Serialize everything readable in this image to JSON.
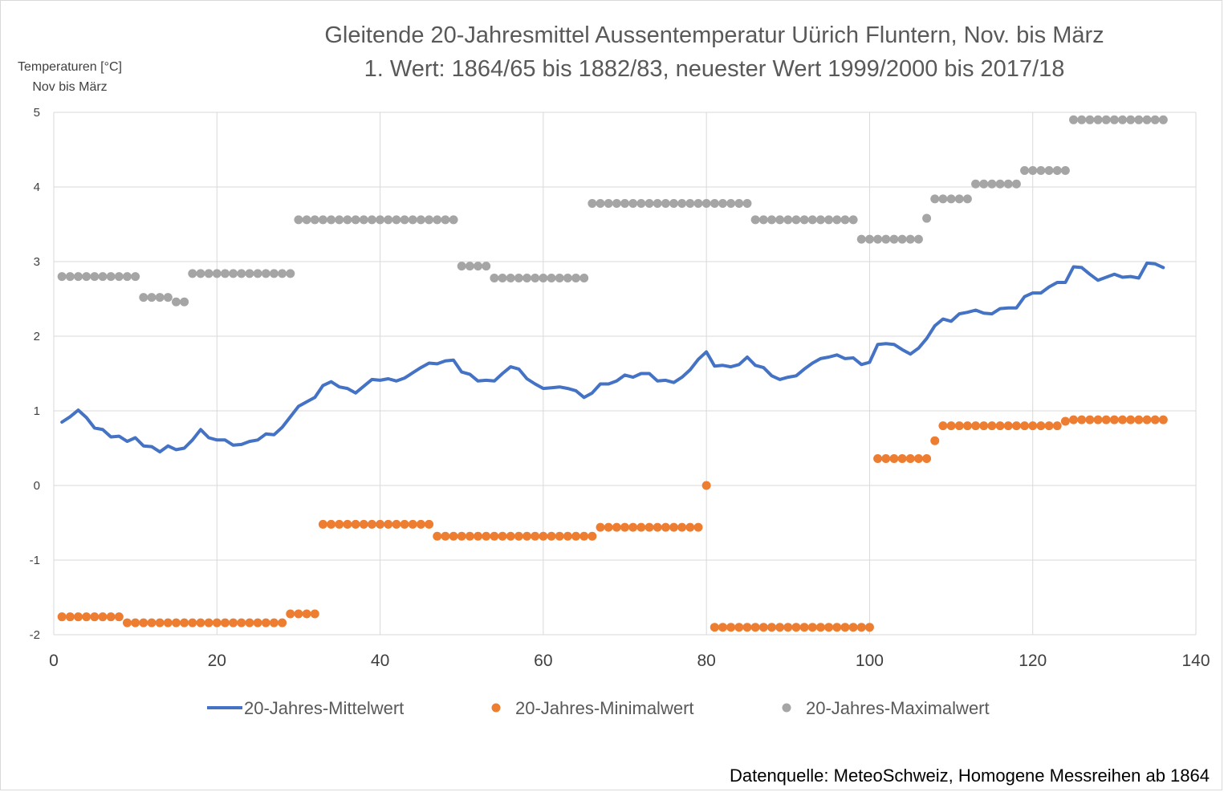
{
  "chart_data": {
    "type": "line",
    "title": "Gleitende 20-Jahresmittel Aussentemperatur Uürich Fluntern, Nov. bis März",
    "subtitle": "1. Wert: 1864/65 bis 1882/83, neuester Wert 1999/2000 bis 2017/18",
    "ylabel_line1": "Temperaturen [°C]",
    "ylabel_line2": "Nov bis März",
    "xlim": [
      0,
      140
    ],
    "ylim": [
      -2,
      5
    ],
    "xticks": [
      "0",
      "20",
      "40",
      "60",
      "80",
      "100",
      "120",
      "140"
    ],
    "yticks": [
      "-2",
      "-1",
      "0",
      "1",
      "2",
      "3",
      "4",
      "5"
    ],
    "grid": true,
    "legend_position": "bottom",
    "source": "Datenquelle: MeteoSchweiz, Homogene Messreihen ab 1864",
    "series": [
      {
        "name": "20-Jahres-Mittelwert",
        "style": "line",
        "color": "#4472c4",
        "x": [
          1,
          2,
          3,
          4,
          5,
          6,
          7,
          8,
          9,
          10,
          11,
          12,
          13,
          14,
          15,
          16,
          17,
          18,
          19,
          20,
          21,
          22,
          23,
          24,
          25,
          26,
          27,
          28,
          29,
          30,
          31,
          32,
          33,
          34,
          35,
          36,
          37,
          38,
          39,
          40,
          41,
          42,
          43,
          44,
          45,
          46,
          47,
          48,
          49,
          50,
          51,
          52,
          53,
          54,
          55,
          56,
          57,
          58,
          59,
          60,
          61,
          62,
          63,
          64,
          65,
          66,
          67,
          68,
          69,
          70,
          71,
          72,
          73,
          74,
          75,
          76,
          77,
          78,
          79,
          80,
          81,
          82,
          83,
          84,
          85,
          86,
          87,
          88,
          89,
          90,
          91,
          92,
          93,
          94,
          95,
          96,
          97,
          98,
          99,
          100,
          101,
          102,
          103,
          104,
          105,
          106,
          107,
          108,
          109,
          110,
          111,
          112,
          113,
          114,
          115,
          116,
          117,
          118,
          119,
          120,
          121,
          122,
          123,
          124,
          125,
          126,
          127,
          128,
          129,
          130,
          131,
          132,
          133,
          134,
          135,
          136
        ],
        "y": [
          0.85,
          0.92,
          1.01,
          0.91,
          0.77,
          0.75,
          0.65,
          0.66,
          0.59,
          0.64,
          0.53,
          0.52,
          0.45,
          0.53,
          0.48,
          0.5,
          0.61,
          0.75,
          0.64,
          0.61,
          0.61,
          0.54,
          0.55,
          0.59,
          0.61,
          0.69,
          0.68,
          0.78,
          0.92,
          1.06,
          1.12,
          1.18,
          1.34,
          1.39,
          1.32,
          1.3,
          1.24,
          1.33,
          1.42,
          1.41,
          1.43,
          1.4,
          1.44,
          1.51,
          1.58,
          1.64,
          1.63,
          1.67,
          1.68,
          1.52,
          1.49,
          1.4,
          1.41,
          1.4,
          1.5,
          1.59,
          1.56,
          1.43,
          1.36,
          1.3,
          1.31,
          1.32,
          1.3,
          1.27,
          1.18,
          1.24,
          1.36,
          1.36,
          1.4,
          1.48,
          1.45,
          1.5,
          1.5,
          1.4,
          1.41,
          1.38,
          1.45,
          1.55,
          1.69,
          1.79,
          1.6,
          1.61,
          1.59,
          1.62,
          1.72,
          1.61,
          1.58,
          1.47,
          1.42,
          1.45,
          1.47,
          1.56,
          1.64,
          1.7,
          1.72,
          1.75,
          1.7,
          1.71,
          1.62,
          1.65,
          1.89,
          1.9,
          1.89,
          1.82,
          1.76,
          1.84,
          1.97,
          2.14,
          2.23,
          2.2,
          2.3,
          2.32,
          2.35,
          2.31,
          2.3,
          2.37,
          2.38,
          2.38,
          2.53,
          2.58,
          2.58,
          2.66,
          2.72,
          2.72,
          2.93,
          2.92,
          2.83,
          2.75,
          2.79,
          2.83,
          2.79,
          2.8,
          2.78,
          2.98,
          2.97,
          2.92
        ]
      },
      {
        "name": "20-Jahres-Minimalwert",
        "style": "dots",
        "color": "#ed7d31",
        "x": [
          1,
          2,
          3,
          4,
          5,
          6,
          7,
          8,
          9,
          10,
          11,
          12,
          13,
          14,
          15,
          16,
          17,
          18,
          19,
          20,
          21,
          22,
          23,
          24,
          25,
          26,
          27,
          28,
          29,
          30,
          31,
          32,
          33,
          34,
          35,
          36,
          37,
          38,
          39,
          40,
          41,
          42,
          43,
          44,
          45,
          46,
          47,
          48,
          49,
          50,
          51,
          52,
          53,
          54,
          55,
          56,
          57,
          58,
          59,
          60,
          61,
          62,
          63,
          64,
          65,
          66,
          67,
          68,
          69,
          70,
          71,
          72,
          73,
          74,
          75,
          76,
          77,
          78,
          79,
          80,
          81,
          82,
          83,
          84,
          85,
          86,
          87,
          88,
          89,
          90,
          91,
          92,
          93,
          94,
          95,
          96,
          97,
          98,
          99,
          100,
          101,
          102,
          103,
          104,
          105,
          106,
          107,
          108,
          109,
          110,
          111,
          112,
          113,
          114,
          115,
          116,
          117,
          118,
          119,
          120,
          121,
          122,
          123,
          124,
          125,
          126,
          127,
          128,
          129,
          130,
          131,
          132,
          133,
          134,
          135,
          136
        ],
        "y": [
          -1.76,
          -1.76,
          -1.76,
          -1.76,
          -1.76,
          -1.76,
          -1.76,
          -1.76,
          -1.84,
          -1.84,
          -1.84,
          -1.84,
          -1.84,
          -1.84,
          -1.84,
          -1.84,
          -1.84,
          -1.84,
          -1.84,
          -1.84,
          -1.84,
          -1.84,
          -1.84,
          -1.84,
          -1.84,
          -1.84,
          -1.84,
          -1.84,
          -1.72,
          -1.72,
          -1.72,
          -1.72,
          -0.52,
          -0.52,
          -0.52,
          -0.52,
          -0.52,
          -0.52,
          -0.52,
          -0.52,
          -0.52,
          -0.52,
          -0.52,
          -0.52,
          -0.52,
          -0.52,
          -0.68,
          -0.68,
          -0.68,
          -0.68,
          -0.68,
          -0.68,
          -0.68,
          -0.68,
          -0.68,
          -0.68,
          -0.68,
          -0.68,
          -0.68,
          -0.68,
          -0.68,
          -0.68,
          -0.68,
          -0.68,
          -0.68,
          -0.68,
          -0.56,
          -0.56,
          -0.56,
          -0.56,
          -0.56,
          -0.56,
          -0.56,
          -0.56,
          -0.56,
          -0.56,
          -0.56,
          -0.56,
          -0.56,
          0.0,
          -1.9,
          -1.9,
          -1.9,
          -1.9,
          -1.9,
          -1.9,
          -1.9,
          -1.9,
          -1.9,
          -1.9,
          -1.9,
          -1.9,
          -1.9,
          -1.9,
          -1.9,
          -1.9,
          -1.9,
          -1.9,
          -1.9,
          -1.9,
          0.36,
          0.36,
          0.36,
          0.36,
          0.36,
          0.36,
          0.36,
          0.6,
          0.8,
          0.8,
          0.8,
          0.8,
          0.8,
          0.8,
          0.8,
          0.8,
          0.8,
          0.8,
          0.8,
          0.8,
          0.8,
          0.8,
          0.8,
          0.86,
          0.88,
          0.88,
          0.88,
          0.88,
          0.88,
          0.88,
          0.88,
          0.88,
          0.88,
          0.88,
          0.88,
          0.88
        ]
      },
      {
        "name": "20-Jahres-Maximalwert",
        "style": "dots",
        "color": "#a5a5a5",
        "x": [
          1,
          2,
          3,
          4,
          5,
          6,
          7,
          8,
          9,
          10,
          11,
          12,
          13,
          14,
          15,
          16,
          17,
          18,
          19,
          20,
          21,
          22,
          23,
          24,
          25,
          26,
          27,
          28,
          29,
          30,
          31,
          32,
          33,
          34,
          35,
          36,
          37,
          38,
          39,
          40,
          41,
          42,
          43,
          44,
          45,
          46,
          47,
          48,
          49,
          50,
          51,
          52,
          53,
          54,
          55,
          56,
          57,
          58,
          59,
          60,
          61,
          62,
          63,
          64,
          65,
          66,
          67,
          68,
          69,
          70,
          71,
          72,
          73,
          74,
          75,
          76,
          77,
          78,
          79,
          80,
          81,
          82,
          83,
          84,
          85,
          86,
          87,
          88,
          89,
          90,
          91,
          92,
          93,
          94,
          95,
          96,
          97,
          98,
          99,
          100,
          101,
          102,
          103,
          104,
          105,
          106,
          107,
          108,
          109,
          110,
          111,
          112,
          113,
          114,
          115,
          116,
          117,
          118,
          119,
          120,
          121,
          122,
          123,
          124,
          125,
          126,
          127,
          128,
          129,
          130,
          131,
          132,
          133,
          134,
          135,
          136
        ],
        "y": [
          2.8,
          2.8,
          2.8,
          2.8,
          2.8,
          2.8,
          2.8,
          2.8,
          2.8,
          2.8,
          2.52,
          2.52,
          2.52,
          2.52,
          2.46,
          2.46,
          2.84,
          2.84,
          2.84,
          2.84,
          2.84,
          2.84,
          2.84,
          2.84,
          2.84,
          2.84,
          2.84,
          2.84,
          2.84,
          3.56,
          3.56,
          3.56,
          3.56,
          3.56,
          3.56,
          3.56,
          3.56,
          3.56,
          3.56,
          3.56,
          3.56,
          3.56,
          3.56,
          3.56,
          3.56,
          3.56,
          3.56,
          3.56,
          3.56,
          2.94,
          2.94,
          2.94,
          2.94,
          2.78,
          2.78,
          2.78,
          2.78,
          2.78,
          2.78,
          2.78,
          2.78,
          2.78,
          2.78,
          2.78,
          2.78,
          3.78,
          3.78,
          3.78,
          3.78,
          3.78,
          3.78,
          3.78,
          3.78,
          3.78,
          3.78,
          3.78,
          3.78,
          3.78,
          3.78,
          3.78,
          3.78,
          3.78,
          3.78,
          3.78,
          3.78,
          3.56,
          3.56,
          3.56,
          3.56,
          3.56,
          3.56,
          3.56,
          3.56,
          3.56,
          3.56,
          3.56,
          3.56,
          3.56,
          3.3,
          3.3,
          3.3,
          3.3,
          3.3,
          3.3,
          3.3,
          3.3,
          3.58,
          3.84,
          3.84,
          3.84,
          3.84,
          3.84,
          4.04,
          4.04,
          4.04,
          4.04,
          4.04,
          4.04,
          4.22,
          4.22,
          4.22,
          4.22,
          4.22,
          4.22,
          4.9,
          4.9,
          4.9,
          4.9,
          4.9,
          4.9,
          4.9,
          4.9,
          4.9,
          4.9,
          4.9,
          4.9
        ]
      }
    ]
  }
}
